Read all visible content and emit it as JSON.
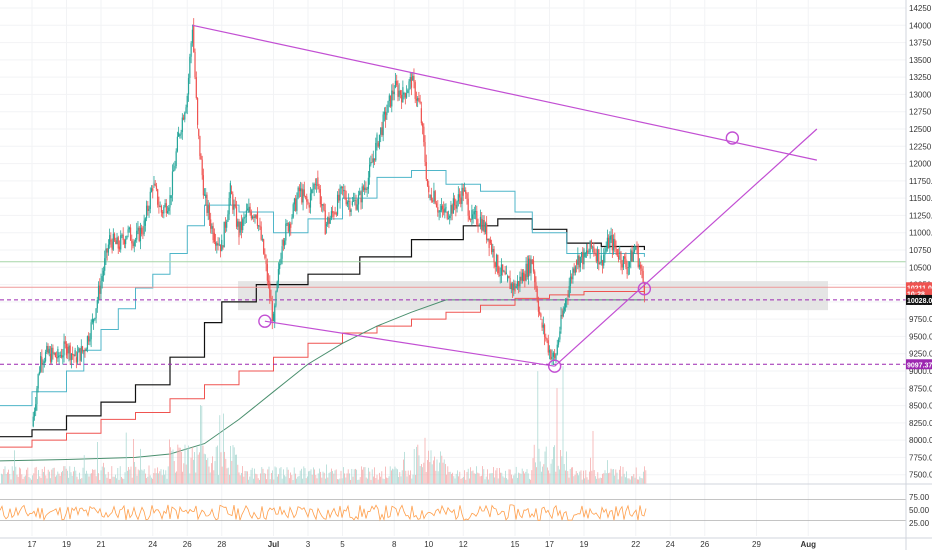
{
  "chart_data": {
    "type": "candlestick",
    "instrument": "BTC price",
    "price_axis": {
      "min": 7250,
      "max": 14250,
      "step": 250,
      "labels": [
        "14250.00",
        "14000.00",
        "13750.00",
        "13500.00",
        "13250.00",
        "13000.00",
        "12750.00",
        "12500.00",
        "12250.00",
        "12000.00",
        "11750.00",
        "11500.00",
        "11250.00",
        "11000.00",
        "10750.00",
        "10500.00",
        "10250.00",
        "10000.00",
        "9750.00",
        "9500.00",
        "9250.00",
        "9000.00",
        "8750.00",
        "8500.00",
        "8250.00",
        "8000.00",
        "7750.00",
        "7500.00"
      ]
    },
    "time_axis": {
      "labels": [
        "17",
        "19",
        "21",
        "24",
        "26",
        "28",
        "Jul",
        "3",
        "5",
        "8",
        "10",
        "12",
        "15",
        "17",
        "19",
        "22",
        "24",
        "26",
        "29",
        "Aug"
      ],
      "label_positions_days": [
        0,
        2,
        4,
        7,
        9,
        11,
        14,
        16,
        18,
        21,
        23,
        25,
        28,
        30,
        32,
        35,
        37,
        39,
        42,
        45
      ]
    },
    "price_tags": [
      {
        "value": 10211.0,
        "text": "10211.00",
        "color": "#ef5350"
      },
      {
        "value": 10120,
        "text": "10:28",
        "color": "#ef5350"
      },
      {
        "value": 10028.0,
        "text": "10028.00",
        "color": "#111111"
      },
      {
        "value": 9097.37,
        "text": "9097.37",
        "color": "#9c27b0"
      }
    ],
    "horizontal_levels": [
      {
        "value": 10028.0,
        "style": "dashed",
        "color": "#9c27b0"
      },
      {
        "value": 9097.37,
        "style": "dashed",
        "color": "#9c27b0"
      },
      {
        "value": 10580,
        "style": "solid",
        "color": "#a5d6a7"
      },
      {
        "value": 10211,
        "style": "solid",
        "color": "#ef9a9a"
      }
    ],
    "zone": {
      "from": 9880,
      "to": 10300,
      "color": "#e0e0e0"
    },
    "trendlines": [
      {
        "from": {
          "day": 9.3,
          "price": 14000
        },
        "to": {
          "day": 45.5,
          "price": 12050
        },
        "color": "#c24fd3"
      },
      {
        "from": {
          "day": 13.5,
          "price": 9720
        },
        "to": {
          "day": 30.3,
          "price": 9070
        },
        "color": "#c24fd3"
      },
      {
        "from": {
          "day": 30.3,
          "price": 9070
        },
        "to": {
          "day": 45.5,
          "price": 12500
        },
        "color": "#c24fd3"
      }
    ],
    "circle_markers": [
      {
        "day": 13.5,
        "price": 9720
      },
      {
        "day": 30.3,
        "price": 9070
      },
      {
        "day": 35.5,
        "price": 10190
      },
      {
        "day": 40.6,
        "price": 12370
      }
    ],
    "candles_ohlc_close_path_days": [
      0,
      0.5,
      1,
      1.5,
      2,
      2.5,
      3,
      3.5,
      4,
      4.5,
      5,
      5.5,
      6,
      6.5,
      7,
      7.5,
      8,
      8.5,
      9,
      9.3,
      9.6,
      10,
      10.5,
      11,
      11.5,
      12,
      12.5,
      13,
      13.5,
      14,
      14.5,
      15,
      15.5,
      16,
      16.5,
      17,
      17.5,
      18,
      18.5,
      19,
      19.5,
      20,
      20.5,
      21,
      21.5,
      22,
      22.5,
      23,
      23.3,
      23.6,
      24,
      24.5,
      25,
      25.5,
      26,
      26.5,
      27,
      27.5,
      28,
      28.5,
      29,
      29.5,
      30,
      30.3,
      30.6,
      31,
      31.5,
      32,
      32.5,
      33,
      33.5,
      34,
      34.5,
      35,
      35.5
    ],
    "candles_close_values": [
      8200,
      9200,
      9250,
      9200,
      9350,
      9200,
      9300,
      9700,
      10300,
      10900,
      10800,
      11000,
      10900,
      11100,
      11700,
      11300,
      11500,
      12400,
      13000,
      14000,
      12500,
      11500,
      11000,
      10800,
      11600,
      11000,
      11300,
      11300,
      10600,
      9700,
      10900,
      11200,
      11600,
      11400,
      11800,
      11100,
      11300,
      11600,
      11400,
      11500,
      11800,
      12300,
      12700,
      13100,
      13000,
      13200,
      12800,
      11500,
      11600,
      11300,
      11300,
      11400,
      11600,
      11200,
      11200,
      10900,
      10500,
      10300,
      10200,
      10400,
      10600,
      9700,
      9300,
      9150,
      9600,
      10100,
      10600,
      10650,
      10800,
      10600,
      10900,
      10700,
      10500,
      10800,
      10200
    ],
    "volume_scale_note": "",
    "oscillator": {
      "axis_labels": [
        "75.00",
        "50.00",
        "25.00"
      ],
      "axis_values": [
        75,
        50,
        25
      ],
      "levels": [
        70,
        30
      ]
    }
  }
}
